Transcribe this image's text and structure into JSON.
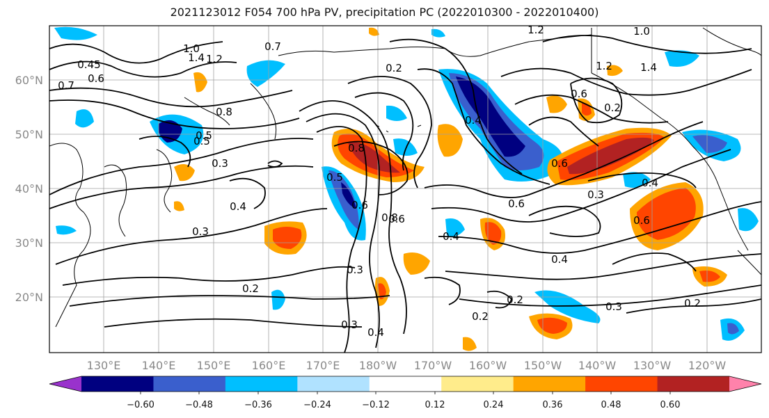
{
  "title": "2021123012 F054 700 hPa PV, precipitation PC (2022010300 - 2022010400)",
  "lat_labels": [
    "60°N",
    "50°N",
    "40°N",
    "30°N",
    "20°N"
  ],
  "lon_labels": [
    "130°E",
    "140°E",
    "150°E",
    "160°E",
    "170°E",
    "180°W",
    "170°W",
    "160°W",
    "150°W",
    "140°W",
    "130°W",
    "120°W"
  ],
  "colorbar": {
    "ticks": [
      "−0.60",
      "−0.48",
      "−0.36",
      "−0.24",
      "−0.12",
      "0.12",
      "0.24",
      "0.36",
      "0.48",
      "0.60"
    ],
    "colors": [
      "#9932cc",
      "#000080",
      "#3a5fcd",
      "#00bfff",
      "#b0e2ff",
      "#ffffff",
      "#ffec8b",
      "#ffa500",
      "#ff4500",
      "#b22222",
      "#ff82ab"
    ]
  },
  "contour_labels": [
    "1.2",
    "1.0",
    "1.2",
    "1.4",
    "1.0",
    "0.7",
    "1.2",
    "1.4",
    "0.45",
    "0.6",
    "0.7",
    "0.2",
    "0.8",
    "0.5",
    "0.3",
    "0.4",
    "0.3",
    "0.5",
    "0.6",
    "0.8",
    "0.6",
    "0.4",
    "0.3",
    "0.6",
    "0.4",
    "0.6",
    "0.6",
    "0.3",
    "0.4",
    "0.6",
    "0.4",
    "0.3",
    "0.2",
    "0.3",
    "0.2",
    "0.2",
    "0.4",
    "0.2",
    "0.2",
    "0.8",
    "0.5"
  ],
  "colors": {
    "contour": "#000000",
    "grid": "#a0a0a0",
    "coast": "#000000"
  }
}
